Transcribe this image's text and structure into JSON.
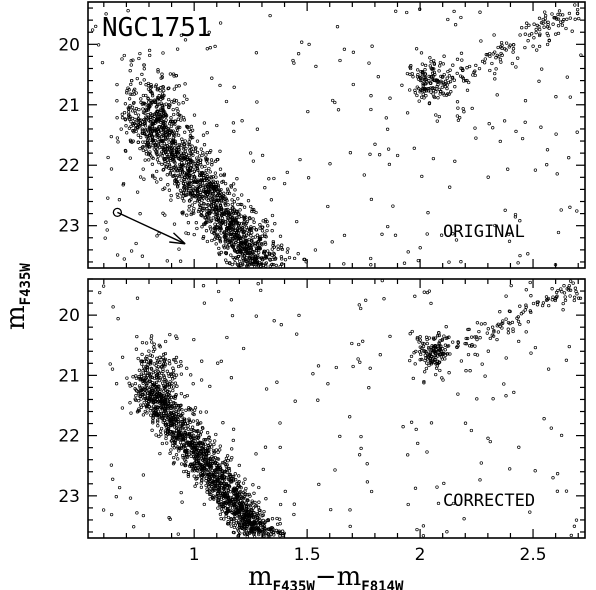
{
  "figure": {
    "cluster_name": "NGC1751",
    "x_label_main": "m",
    "x_label_sub1": "F435W",
    "x_label_minus": "−m",
    "x_label_sub2": "F814W",
    "y_label_main": "m",
    "y_label_sub": "F435W"
  },
  "chart_data": [
    {
      "type": "scatter",
      "panel": "top",
      "label": "ORIGINAL",
      "title": "NGC1751",
      "xlim": [
        0.53,
        2.73
      ],
      "ylim": [
        23.7,
        19.3
      ],
      "y_inverted": true,
      "xticks": [
        1,
        1.5,
        2,
        2.5
      ],
      "yticks": [
        20,
        21,
        22,
        23
      ],
      "reddening_vector": {
        "start": [
          0.66,
          22.78
        ],
        "end": [
          0.96,
          23.3
        ]
      },
      "populations": [
        {
          "name": "main sequence",
          "shape": "band",
          "x_start": 0.8,
          "y_start": 21.2,
          "x_end": 1.3,
          "y_end": 23.7,
          "width": 0.07,
          "count": 1400
        },
        {
          "name": "upper main sequence",
          "shape": "blob",
          "x_center": 0.82,
          "y_center": 21.1,
          "sx": 0.07,
          "sy": 0.35,
          "count": 300
        },
        {
          "name": "red clump",
          "shape": "blob",
          "x_center": 2.05,
          "y_center": 20.6,
          "sx": 0.05,
          "sy": 0.18,
          "count": 150
        },
        {
          "name": "red giant branch",
          "shape": "band",
          "x_start": 2.15,
          "y_start": 20.6,
          "x_end": 2.7,
          "y_end": 19.4,
          "width": 0.05,
          "count": 120
        },
        {
          "name": "field",
          "shape": "scatter",
          "xrange": [
            0.55,
            2.72
          ],
          "yrange": [
            19.4,
            23.7
          ],
          "count": 230
        }
      ]
    },
    {
      "type": "scatter",
      "panel": "bottom",
      "label": "CORRECTED",
      "xlim": [
        0.53,
        2.73
      ],
      "ylim": [
        23.7,
        19.4
      ],
      "y_inverted": true,
      "xticks": [
        1,
        1.5,
        2,
        2.5
      ],
      "yticks": [
        20,
        21,
        22,
        23
      ],
      "populations": [
        {
          "name": "main sequence",
          "shape": "band",
          "x_start": 0.8,
          "y_start": 21.2,
          "x_end": 1.3,
          "y_end": 23.7,
          "width": 0.05,
          "count": 1400
        },
        {
          "name": "upper main sequence",
          "shape": "blob",
          "x_center": 0.83,
          "y_center": 21.1,
          "sx": 0.06,
          "sy": 0.3,
          "count": 280
        },
        {
          "name": "red clump",
          "shape": "blob",
          "x_center": 2.06,
          "y_center": 20.6,
          "sx": 0.04,
          "sy": 0.15,
          "count": 140
        },
        {
          "name": "red giant branch",
          "shape": "band",
          "x_start": 2.15,
          "y_start": 20.6,
          "x_end": 2.7,
          "y_end": 19.5,
          "width": 0.05,
          "count": 110
        },
        {
          "name": "field",
          "shape": "scatter",
          "xrange": [
            0.55,
            2.72
          ],
          "yrange": [
            19.4,
            23.7
          ],
          "count": 200
        }
      ]
    }
  ]
}
